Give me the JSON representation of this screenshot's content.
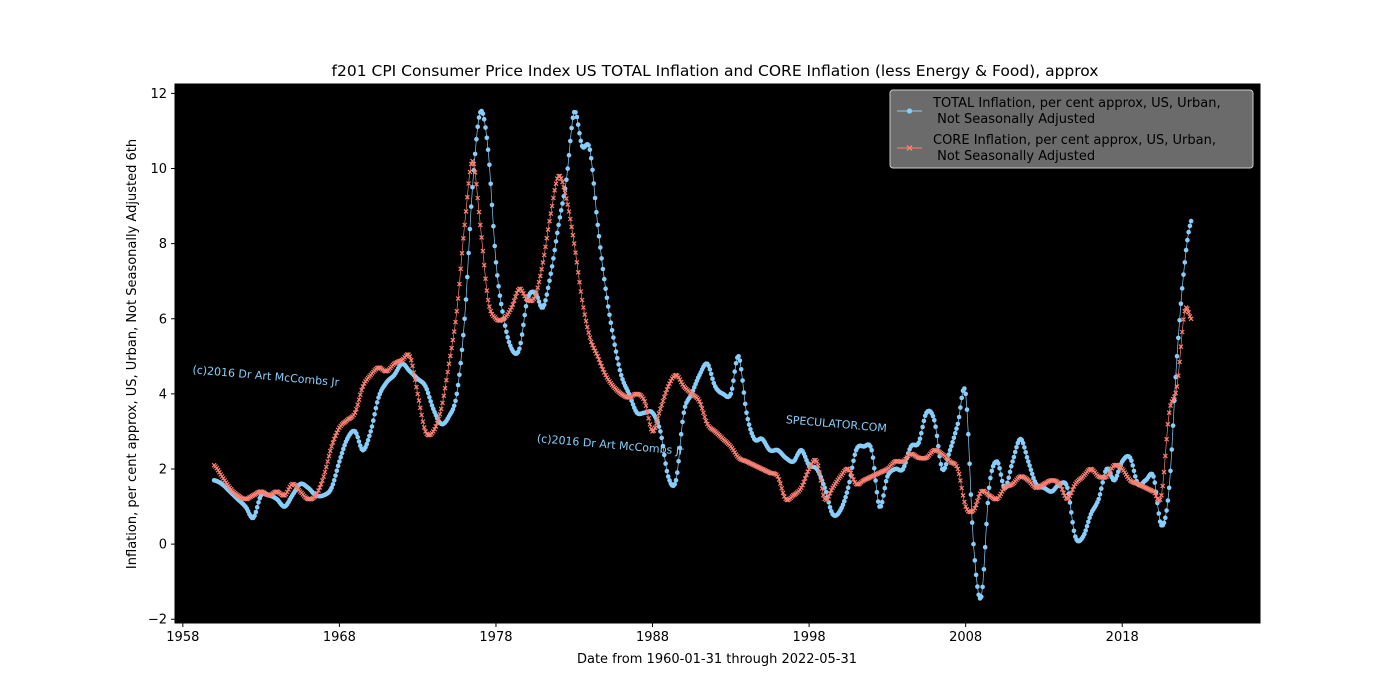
{
  "chart_data": {
    "type": "line",
    "title": "f201 CPI Consumer Price Index US TOTAL Inflation and CORE Inflation (less Energy & Food), approx",
    "xlabel": "Date from 1960-01-31 through 2022-05-31",
    "ylabel": "Inflation, per cent approx, US, Urban, Not Seasonally Adjusted 6th",
    "xlim": [
      1957.5,
      2026.8
    ],
    "ylim": [
      -2.1,
      12.25
    ],
    "x_ticks": [
      1958,
      1968,
      1978,
      1988,
      1998,
      2008,
      2018
    ],
    "x_tick_labels": [
      "1958",
      "1968",
      "1978",
      "1988",
      "1998",
      "2008",
      "2018"
    ],
    "y_ticks": [
      -2,
      0,
      2,
      4,
      6,
      8,
      10,
      12
    ],
    "y_tick_labels": [
      "−2",
      "0",
      "2",
      "4",
      "6",
      "8",
      "10",
      "12"
    ],
    "background": "#000000",
    "grid": false,
    "legend_position": "top-right",
    "watermarks": [
      {
        "text": "(c)2016 Dr Art McCombs Jr",
        "at": [
          1958.6,
          4.55
        ]
      },
      {
        "text": "(c)2016 Dr Art McCombs Jr",
        "at": [
          1980.6,
          2.72
        ]
      },
      {
        "text": "SPECULATOR.COM",
        "at": [
          1996.5,
          3.22
        ]
      }
    ],
    "series": [
      {
        "name": "TOTAL Inflation, per cent approx, US, Urban,\n Not Seasonally Adjusted",
        "color": "#87cefa",
        "marker": "circle",
        "points": [
          [
            1960.0,
            1.7
          ],
          [
            1960.5,
            1.6
          ],
          [
            1961.0,
            1.4
          ],
          [
            1961.5,
            1.2
          ],
          [
            1962.0,
            1.0
          ],
          [
            1962.5,
            0.7
          ],
          [
            1963.0,
            1.3
          ],
          [
            1963.5,
            1.3
          ],
          [
            1964.0,
            1.2
          ],
          [
            1964.5,
            1.0
          ],
          [
            1965.0,
            1.3
          ],
          [
            1965.5,
            1.6
          ],
          [
            1966.0,
            1.5
          ],
          [
            1966.5,
            1.3
          ],
          [
            1967.0,
            1.3
          ],
          [
            1967.5,
            1.5
          ],
          [
            1968.0,
            2.2
          ],
          [
            1968.5,
            2.8
          ],
          [
            1969.0,
            3.0
          ],
          [
            1969.5,
            2.5
          ],
          [
            1970.0,
            3.0
          ],
          [
            1970.5,
            3.9
          ],
          [
            1971.0,
            4.3
          ],
          [
            1971.5,
            4.5
          ],
          [
            1972.0,
            4.8
          ],
          [
            1972.5,
            4.6
          ],
          [
            1973.0,
            4.4
          ],
          [
            1973.5,
            4.2
          ],
          [
            1974.0,
            3.6
          ],
          [
            1974.5,
            3.2
          ],
          [
            1975.0,
            3.4
          ],
          [
            1975.5,
            4.0
          ],
          [
            1976.0,
            6.0
          ],
          [
            1976.5,
            9.5
          ],
          [
            1977.0,
            11.5
          ],
          [
            1977.5,
            10.5
          ],
          [
            1978.0,
            7.5
          ],
          [
            1978.5,
            6.0
          ],
          [
            1979.0,
            5.2
          ],
          [
            1979.5,
            5.2
          ],
          [
            1980.0,
            6.5
          ],
          [
            1980.5,
            6.7
          ],
          [
            1981.0,
            6.3
          ],
          [
            1981.5,
            7.2
          ],
          [
            1982.0,
            8.5
          ],
          [
            1982.5,
            9.7
          ],
          [
            1983.0,
            11.5
          ],
          [
            1983.5,
            10.6
          ],
          [
            1984.0,
            10.5
          ],
          [
            1984.5,
            8.5
          ],
          [
            1985.0,
            6.8
          ],
          [
            1985.5,
            5.5
          ],
          [
            1986.0,
            4.5
          ],
          [
            1986.5,
            4.0
          ],
          [
            1987.0,
            3.5
          ],
          [
            1987.5,
            3.5
          ],
          [
            1988.0,
            3.5
          ],
          [
            1988.5,
            3.0
          ],
          [
            1989.0,
            1.8
          ],
          [
            1989.5,
            1.7
          ],
          [
            1990.0,
            3.5
          ],
          [
            1990.5,
            4.0
          ],
          [
            1991.0,
            4.5
          ],
          [
            1991.5,
            4.8
          ],
          [
            1992.0,
            4.2
          ],
          [
            1992.5,
            4.0
          ],
          [
            1993.0,
            4.0
          ],
          [
            1993.5,
            5.0
          ],
          [
            1994.0,
            3.5
          ],
          [
            1994.5,
            2.8
          ],
          [
            1995.0,
            2.8
          ],
          [
            1995.5,
            2.5
          ],
          [
            1996.0,
            2.5
          ],
          [
            1996.5,
            2.3
          ],
          [
            1997.0,
            2.2
          ],
          [
            1997.5,
            2.5
          ],
          [
            1998.0,
            2.1
          ],
          [
            1998.5,
            2.0
          ],
          [
            1999.0,
            1.5
          ],
          [
            1999.5,
            0.8
          ],
          [
            2000.0,
            0.9
          ],
          [
            2000.5,
            1.5
          ],
          [
            2001.0,
            2.5
          ],
          [
            2001.5,
            2.6
          ],
          [
            2002.0,
            2.5
          ],
          [
            2002.5,
            1.0
          ],
          [
            2003.0,
            1.8
          ],
          [
            2003.5,
            2.0
          ],
          [
            2004.0,
            2.0
          ],
          [
            2004.5,
            2.6
          ],
          [
            2005.0,
            2.7
          ],
          [
            2005.5,
            3.5
          ],
          [
            2006.0,
            3.3
          ],
          [
            2006.5,
            2.0
          ],
          [
            2007.0,
            2.5
          ],
          [
            2007.5,
            3.2
          ],
          [
            2008.0,
            4.0
          ],
          [
            2008.5,
            0.0
          ],
          [
            2009.0,
            -1.4
          ],
          [
            2009.5,
            1.5
          ],
          [
            2010.0,
            2.2
          ],
          [
            2010.5,
            1.5
          ],
          [
            2011.0,
            2.2
          ],
          [
            2011.5,
            2.8
          ],
          [
            2012.0,
            2.2
          ],
          [
            2012.5,
            1.6
          ],
          [
            2013.0,
            1.5
          ],
          [
            2013.5,
            1.4
          ],
          [
            2014.0,
            1.6
          ],
          [
            2014.5,
            1.5
          ],
          [
            2015.0,
            0.2
          ],
          [
            2015.5,
            0.2
          ],
          [
            2016.0,
            0.8
          ],
          [
            2016.5,
            1.2
          ],
          [
            2017.0,
            2.0
          ],
          [
            2017.5,
            1.7
          ],
          [
            2018.0,
            2.2
          ],
          [
            2018.5,
            2.3
          ],
          [
            2019.0,
            1.6
          ],
          [
            2019.5,
            1.7
          ],
          [
            2020.0,
            1.8
          ],
          [
            2020.5,
            0.5
          ],
          [
            2021.0,
            1.5
          ],
          [
            2021.5,
            5.0
          ],
          [
            2022.0,
            7.5
          ],
          [
            2022.4,
            8.6
          ]
        ]
      },
      {
        "name": "CORE Inflation, per cent approx, US, Urban,\n Not Seasonally Adjusted",
        "color": "#fa8072",
        "marker": "x",
        "points": [
          [
            1960.0,
            2.1
          ],
          [
            1960.5,
            1.8
          ],
          [
            1961.0,
            1.5
          ],
          [
            1961.5,
            1.3
          ],
          [
            1962.0,
            1.2
          ],
          [
            1962.5,
            1.3
          ],
          [
            1963.0,
            1.4
          ],
          [
            1963.5,
            1.3
          ],
          [
            1964.0,
            1.4
          ],
          [
            1964.5,
            1.3
          ],
          [
            1965.0,
            1.6
          ],
          [
            1965.5,
            1.4
          ],
          [
            1966.0,
            1.2
          ],
          [
            1966.5,
            1.3
          ],
          [
            1967.0,
            1.8
          ],
          [
            1967.5,
            2.6
          ],
          [
            1968.0,
            3.1
          ],
          [
            1968.5,
            3.3
          ],
          [
            1969.0,
            3.5
          ],
          [
            1969.5,
            4.2
          ],
          [
            1970.0,
            4.5
          ],
          [
            1970.5,
            4.7
          ],
          [
            1971.0,
            4.6
          ],
          [
            1971.5,
            4.8
          ],
          [
            1972.0,
            4.9
          ],
          [
            1972.5,
            5.0
          ],
          [
            1973.0,
            4.0
          ],
          [
            1973.5,
            3.0
          ],
          [
            1974.0,
            3.0
          ],
          [
            1974.5,
            3.6
          ],
          [
            1975.0,
            4.8
          ],
          [
            1975.5,
            6.2
          ],
          [
            1976.0,
            8.5
          ],
          [
            1976.5,
            10.2
          ],
          [
            1977.0,
            8.5
          ],
          [
            1977.5,
            6.5
          ],
          [
            1978.0,
            6.0
          ],
          [
            1978.5,
            6.0
          ],
          [
            1979.0,
            6.3
          ],
          [
            1979.5,
            6.8
          ],
          [
            1980.0,
            6.5
          ],
          [
            1980.5,
            6.6
          ],
          [
            1981.0,
            7.5
          ],
          [
            1981.5,
            8.8
          ],
          [
            1982.0,
            9.8
          ],
          [
            1982.5,
            9.2
          ],
          [
            1983.0,
            8.0
          ],
          [
            1983.5,
            6.5
          ],
          [
            1984.0,
            5.5
          ],
          [
            1984.5,
            5.0
          ],
          [
            1985.0,
            4.5
          ],
          [
            1985.5,
            4.2
          ],
          [
            1986.0,
            4.0
          ],
          [
            1986.5,
            3.9
          ],
          [
            1987.0,
            4.0
          ],
          [
            1987.5,
            3.8
          ],
          [
            1988.0,
            3.0
          ],
          [
            1988.5,
            3.6
          ],
          [
            1989.0,
            4.2
          ],
          [
            1989.5,
            4.5
          ],
          [
            1990.0,
            4.2
          ],
          [
            1990.5,
            4.0
          ],
          [
            1991.0,
            3.8
          ],
          [
            1991.5,
            3.2
          ],
          [
            1992.0,
            3.0
          ],
          [
            1992.5,
            2.8
          ],
          [
            1993.0,
            2.6
          ],
          [
            1993.5,
            2.3
          ],
          [
            1994.0,
            2.2
          ],
          [
            1994.5,
            2.1
          ],
          [
            1995.0,
            2.0
          ],
          [
            1995.5,
            1.9
          ],
          [
            1996.0,
            1.8
          ],
          [
            1996.5,
            1.2
          ],
          [
            1997.0,
            1.3
          ],
          [
            1997.5,
            1.5
          ],
          [
            1998.0,
            2.0
          ],
          [
            1998.5,
            2.2
          ],
          [
            1999.0,
            1.2
          ],
          [
            1999.5,
            1.5
          ],
          [
            2000.0,
            1.8
          ],
          [
            2000.5,
            2.0
          ],
          [
            2001.0,
            1.6
          ],
          [
            2001.5,
            1.7
          ],
          [
            2002.0,
            1.8
          ],
          [
            2002.5,
            1.9
          ],
          [
            2003.0,
            2.0
          ],
          [
            2003.5,
            2.2
          ],
          [
            2004.0,
            2.2
          ],
          [
            2004.5,
            2.4
          ],
          [
            2005.0,
            2.3
          ],
          [
            2005.5,
            2.3
          ],
          [
            2006.0,
            2.5
          ],
          [
            2006.5,
            2.4
          ],
          [
            2007.0,
            2.2
          ],
          [
            2007.5,
            2.0
          ],
          [
            2008.0,
            1.0
          ],
          [
            2008.5,
            0.9
          ],
          [
            2009.0,
            1.4
          ],
          [
            2009.5,
            1.3
          ],
          [
            2010.0,
            1.2
          ],
          [
            2010.5,
            1.5
          ],
          [
            2011.0,
            1.6
          ],
          [
            2011.5,
            1.8
          ],
          [
            2012.0,
            1.7
          ],
          [
            2012.5,
            1.5
          ],
          [
            2013.0,
            1.6
          ],
          [
            2013.5,
            1.7
          ],
          [
            2014.0,
            1.6
          ],
          [
            2014.5,
            1.2
          ],
          [
            2015.0,
            1.6
          ],
          [
            2015.5,
            1.8
          ],
          [
            2016.0,
            2.0
          ],
          [
            2016.5,
            1.8
          ],
          [
            2017.0,
            1.8
          ],
          [
            2017.5,
            2.1
          ],
          [
            2018.0,
            2.0
          ],
          [
            2018.5,
            1.7
          ],
          [
            2019.0,
            1.6
          ],
          [
            2019.5,
            1.5
          ],
          [
            2020.0,
            1.4
          ],
          [
            2020.5,
            1.3
          ],
          [
            2021.0,
            3.5
          ],
          [
            2021.5,
            4.2
          ],
          [
            2022.0,
            6.2
          ],
          [
            2022.4,
            6.0
          ]
        ]
      }
    ]
  }
}
